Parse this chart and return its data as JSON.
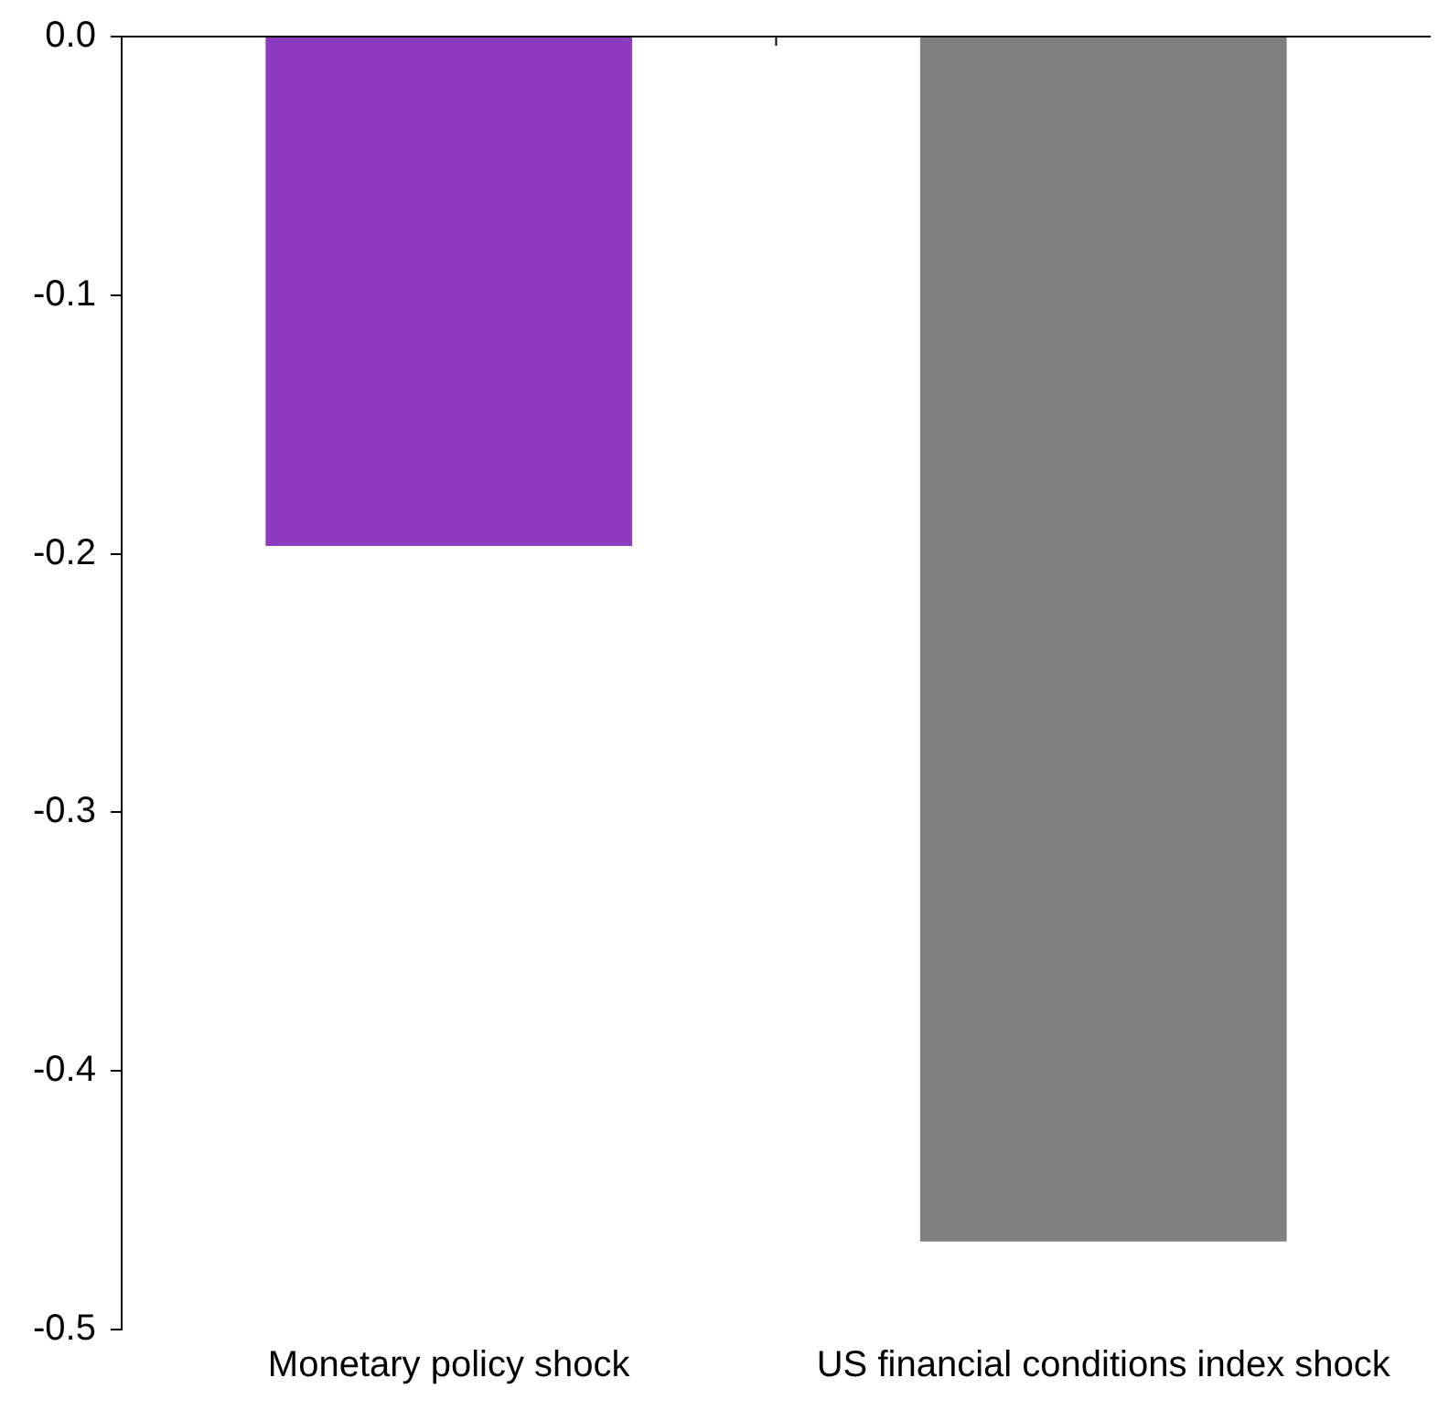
{
  "chart_data": {
    "type": "bar",
    "categories": [
      "Monetary policy shock",
      "US financial conditions index shock"
    ],
    "values": [
      -0.197,
      -0.466
    ],
    "colors": [
      "#8e3bbf",
      "#808080"
    ],
    "ylim": [
      -0.5,
      0.0
    ],
    "yticks": [
      {
        "value": -0.5,
        "label": "-0.5"
      },
      {
        "value": -0.4,
        "label": "-0.4"
      },
      {
        "value": -0.3,
        "label": "-0.3"
      },
      {
        "value": -0.2,
        "label": "-0.2"
      },
      {
        "value": -0.1,
        "label": "-0.1"
      },
      {
        "value": 0,
        "label": "0.0"
      }
    ],
    "grid": false,
    "legend": false
  }
}
